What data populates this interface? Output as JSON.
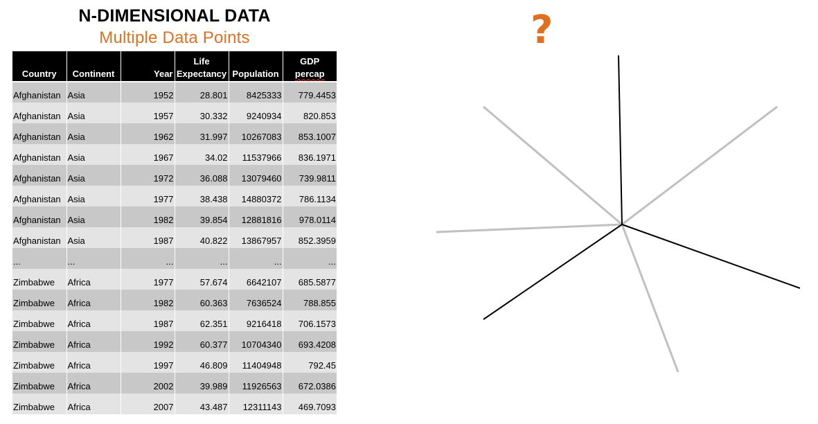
{
  "title": "N-DIMENSIONAL DATA",
  "subtitle": "Multiple Data Points",
  "question_mark": "?",
  "colors": {
    "accent": "#e07020",
    "header_bg": "#000000",
    "row_dark": "#c8c8c8",
    "row_light": "#e4e4e4",
    "axis_black": "#000000",
    "axis_gray": "#c0c0c0"
  },
  "table": {
    "columns": [
      {
        "line1": "",
        "line2": "Country"
      },
      {
        "line1": "",
        "line2": "Continent"
      },
      {
        "line1": "",
        "line2": "Year"
      },
      {
        "line1": "Life",
        "line2": "Expectancy"
      },
      {
        "line1": "",
        "line2": "Population"
      },
      {
        "line1": "GDP",
        "line2": "percap"
      }
    ],
    "rows": [
      [
        "Afghanistan",
        "Asia",
        "1952",
        "28.801",
        "8425333",
        "779.4453"
      ],
      [
        "Afghanistan",
        "Asia",
        "1957",
        "30.332",
        "9240934",
        "820.853"
      ],
      [
        "Afghanistan",
        "Asia",
        "1962",
        "31.997",
        "10267083",
        "853.1007"
      ],
      [
        "Afghanistan",
        "Asia",
        "1967",
        "34.02",
        "11537966",
        "836.1971"
      ],
      [
        "Afghanistan",
        "Asia",
        "1972",
        "36.088",
        "13079460",
        "739.9811"
      ],
      [
        "Afghanistan",
        "Asia",
        "1977",
        "38.438",
        "14880372",
        "786.1134"
      ],
      [
        "Afghanistan",
        "Asia",
        "1982",
        "39.854",
        "12881816",
        "978.0114"
      ],
      [
        "Afghanistan",
        "Asia",
        "1987",
        "40.822",
        "13867957",
        "852.3959"
      ],
      [
        "...",
        "...",
        "...",
        "...",
        "...",
        "..."
      ],
      [
        "Zimbabwe",
        "Africa",
        "1977",
        "57.674",
        "6642107",
        "685.5877"
      ],
      [
        "Zimbabwe",
        "Africa",
        "1982",
        "60.363",
        "7636524",
        "788.855"
      ],
      [
        "Zimbabwe",
        "Africa",
        "1987",
        "62.351",
        "9216418",
        "706.1573"
      ],
      [
        "Zimbabwe",
        "Africa",
        "1992",
        "60.377",
        "10704340",
        "693.4208"
      ],
      [
        "Zimbabwe",
        "Africa",
        "1997",
        "46.809",
        "11404948",
        "792.45"
      ],
      [
        "Zimbabwe",
        "Africa",
        "2002",
        "39.989",
        "11926563",
        "672.0386"
      ],
      [
        "Zimbabwe",
        "Africa",
        "2007",
        "43.487",
        "12311143",
        "469.7093"
      ]
    ]
  }
}
